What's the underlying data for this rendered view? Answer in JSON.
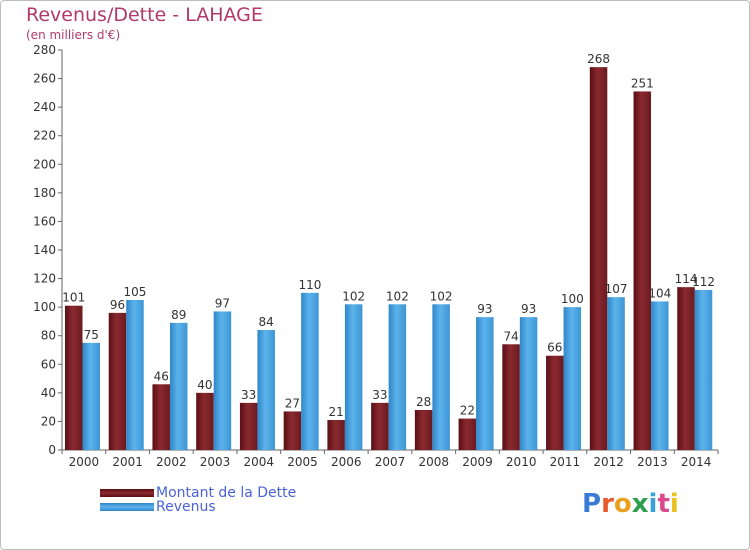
{
  "header": {
    "title": "Revenus/Dette - LAHAGE",
    "subtitle": "(en milliers d'€)"
  },
  "legend": {
    "dette_label": "Montant de la Dette",
    "revenus_label": "Revenus"
  },
  "logo": {
    "text": "Proxiti",
    "colors": [
      "#3a7bd5",
      "#e55b2e",
      "#e8a020",
      "#2e9f4d",
      "#3aa0d8",
      "#d94a8c",
      "#e8c21c"
    ]
  },
  "colors": {
    "dette": "#7a1f24",
    "revenus": "#4aa3e0",
    "title": "#b13a6a",
    "legend_text": "#4a63d8"
  },
  "chart_data": {
    "type": "bar",
    "title": "Revenus/Dette - LAHAGE",
    "subtitle": "(en milliers d'€)",
    "categories": [
      "2000",
      "2001",
      "2002",
      "2003",
      "2004",
      "2005",
      "2006",
      "2007",
      "2008",
      "2009",
      "2010",
      "2011",
      "2012",
      "2013",
      "2014"
    ],
    "series": [
      {
        "name": "Montant de la Dette",
        "values": [
          101,
          96,
          46,
          40,
          33,
          27,
          21,
          33,
          28,
          22,
          74,
          66,
          268,
          251,
          114
        ]
      },
      {
        "name": "Revenus",
        "values": [
          75,
          105,
          89,
          97,
          84,
          110,
          102,
          102,
          102,
          93,
          93,
          100,
          107,
          104,
          112
        ]
      }
    ],
    "ylim": [
      0,
      280
    ],
    "yticks": [
      0,
      20,
      40,
      60,
      80,
      100,
      120,
      140,
      160,
      180,
      200,
      220,
      240,
      260,
      280
    ],
    "grid": false,
    "legend_position": "bottom-left"
  }
}
